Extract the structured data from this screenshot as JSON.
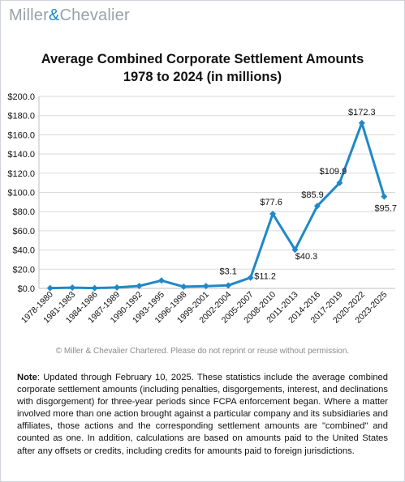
{
  "logo": {
    "part1": "Miller",
    "amp": "&",
    "part2": "Chevalier"
  },
  "colors": {
    "line": "#1f88c8",
    "logo_gray": "#9aa1a8",
    "grid": "#d9d9d9"
  },
  "chart_data": {
    "type": "line",
    "title_line1": "Average Combined Corporate Settlement Amounts",
    "title_line2": "1978 to 2024 (in millions)",
    "categories": [
      "1978-1980",
      "1981-1983",
      "1984-1986",
      "1987-1989",
      "1990-1992",
      "1993-1995",
      "1996-1998",
      "1999-2001",
      "2002-2004",
      "2005-2007",
      "2008-2010",
      "2011-2013",
      "2014-2016",
      "2017-2019",
      "2020-2022",
      "2023-2025"
    ],
    "series": [
      {
        "values": [
          0.3,
          0.8,
          0.3,
          0.9,
          2.5,
          8.2,
          1.8,
          2.4,
          3.1,
          11.2,
          77.6,
          40.3,
          85.9,
          109.9,
          172.3,
          95.7
        ]
      }
    ],
    "data_labels": [
      "",
      "",
      "",
      "",
      "",
      "",
      "",
      "",
      "$3.1",
      "$11.2",
      "$77.6",
      "$40.3",
      "$85.9",
      "$109.9",
      "$172.3",
      "$95.7"
    ],
    "y_ticks": [
      "$0.0",
      "$20.0",
      "$40.0",
      "$60.0",
      "$80.0",
      "$100.0",
      "$120.0",
      "$140.0",
      "$160.0",
      "$180.0",
      "$200.0"
    ],
    "ylim": [
      0,
      200
    ],
    "grid": true,
    "marker": "diamond"
  },
  "copyright": "© Miller & Chevalier Chartered. Please do not reprint or reuse without permission.",
  "note": {
    "label": "Note",
    "text": ": Updated through February 10, 2025. These statistics include the average combined corporate settlement amounts (including penalties, disgorgements, interest, and declinations with disgorgement) for three-year periods since FCPA enforcement began. Where a matter involved more than one action brought against a particular company and its subsidiaries and affiliates, those actions and the corresponding settlement amounts are \"combined\" and counted as one. In addition, calculations are based on amounts paid to the United States after any offsets or credits, including credits for amounts paid to foreign jurisdictions."
  }
}
